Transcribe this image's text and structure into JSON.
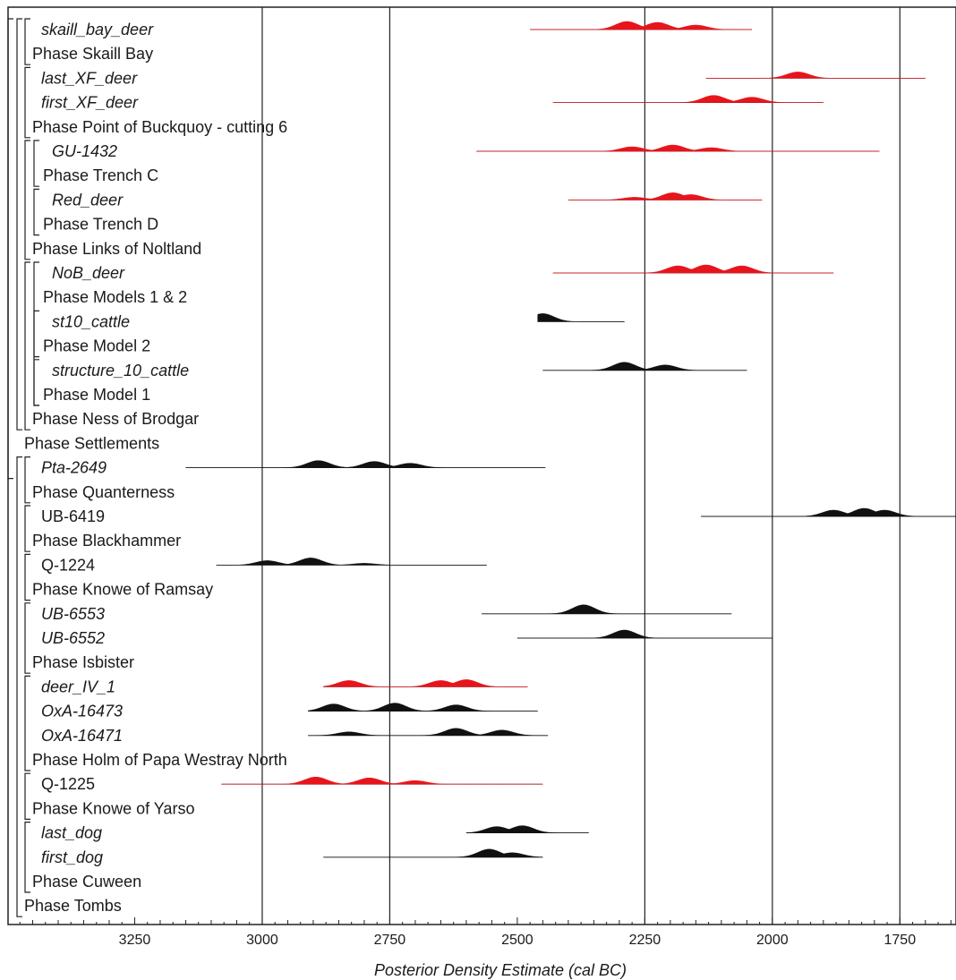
{
  "chart_data": {
    "type": "oxcal-multiplot",
    "xlabel": "Posterior Density Estimate (cal BC)",
    "xlim": [
      3500,
      1640
    ],
    "ticks": [
      3250,
      3000,
      2750,
      2500,
      2250,
      2000,
      1750
    ],
    "tick_labels": [
      "3250",
      "3000",
      "2750",
      "2500",
      "2250",
      "2000",
      "1750"
    ],
    "gridlines": [
      3000,
      2750,
      2250,
      2000,
      1750
    ],
    "colors": {
      "red": "#e8141c",
      "black": "#111111",
      "line": "#222222"
    },
    "rows": [
      {
        "label": "skaill_bay_deer",
        "italic": true,
        "color": "red",
        "range": [
          2475,
          2040
        ],
        "peaks": [
          [
            2285,
            9
          ],
          [
            2225,
            8
          ],
          [
            2150,
            5
          ]
        ]
      },
      {
        "label": "Phase Skaill Bay",
        "italic": false
      },
      {
        "label": "last_XF_deer",
        "italic": true,
        "color": "red",
        "range": [
          2130,
          1700
        ],
        "peaks": [
          [
            1950,
            7
          ]
        ]
      },
      {
        "label": "first_XF_deer",
        "italic": true,
        "color": "red",
        "range": [
          2430,
          1900
        ],
        "peaks": [
          [
            2115,
            8
          ],
          [
            2040,
            6
          ]
        ]
      },
      {
        "label": "Phase Point of Buckquoy - cutting 6",
        "italic": false
      },
      {
        "label": "GU-1432",
        "italic": true,
        "color": "red",
        "range": [
          2580,
          1790
        ],
        "peaks": [
          [
            2275,
            5
          ],
          [
            2195,
            7
          ],
          [
            2120,
            4
          ]
        ]
      },
      {
        "label": "Phase Trench C",
        "italic": false
      },
      {
        "label": "Red_deer",
        "italic": true,
        "color": "red",
        "range": [
          2400,
          2020
        ],
        "peaks": [
          [
            2270,
            3
          ],
          [
            2195,
            8
          ],
          [
            2160,
            6
          ]
        ]
      },
      {
        "label": "Phase Trench D",
        "italic": false
      },
      {
        "label": "Phase Links of Noltland",
        "italic": false
      },
      {
        "label": "NoB_deer",
        "italic": true,
        "color": "red",
        "range": [
          2430,
          1880
        ],
        "peaks": [
          [
            2185,
            8
          ],
          [
            2130,
            9
          ],
          [
            2060,
            8
          ]
        ]
      },
      {
        "label": "Phase Models 1 & 2",
        "italic": false
      },
      {
        "label": "st10_cattle",
        "italic": true,
        "color": "black",
        "range": [
          2460,
          2290
        ],
        "peaks": [
          [
            2450,
            9
          ]
        ]
      },
      {
        "label": "Phase Model 2",
        "italic": false
      },
      {
        "label": "structure_10_cattle",
        "italic": true,
        "color": "black",
        "range": [
          2450,
          2050
        ],
        "peaks": [
          [
            2290,
            9
          ],
          [
            2210,
            6
          ]
        ]
      },
      {
        "label": "Phase Model 1",
        "italic": false
      },
      {
        "label": "Phase Ness of Brodgar",
        "italic": false
      },
      {
        "label": "Phase Settlements",
        "italic": false
      },
      {
        "label": "Pta-2649",
        "italic": true,
        "color": "black",
        "range": [
          3150,
          2445
        ],
        "peaks": [
          [
            2890,
            8
          ],
          [
            2780,
            7
          ],
          [
            2710,
            5
          ]
        ]
      },
      {
        "label": "Phase Quanterness",
        "italic": false
      },
      {
        "label": "UB-6419",
        "italic": false,
        "color": "black",
        "range": [
          2140,
          1640
        ],
        "peaks": [
          [
            1880,
            7
          ],
          [
            1820,
            9
          ],
          [
            1780,
            7
          ]
        ]
      },
      {
        "label": "Phase Blackhammer",
        "italic": false
      },
      {
        "label": "Q-1224",
        "italic": false,
        "color": "black",
        "range": [
          3090,
          2560
        ],
        "peaks": [
          [
            2990,
            5
          ],
          [
            2905,
            8
          ],
          [
            2800,
            2
          ]
        ]
      },
      {
        "label": "Phase Knowe of Ramsay",
        "italic": false
      },
      {
        "label": "UB-6553",
        "italic": true,
        "color": "black",
        "range": [
          2570,
          2080
        ],
        "peaks": [
          [
            2370,
            10
          ]
        ]
      },
      {
        "label": "UB-6552",
        "italic": true,
        "color": "black",
        "range": [
          2500,
          2000
        ],
        "peaks": [
          [
            2290,
            9
          ]
        ]
      },
      {
        "label": "Phase Isbister",
        "italic": false
      },
      {
        "label": "deer_IV_1",
        "italic": true,
        "color": "red",
        "range": [
          2880,
          2480
        ],
        "peaks": [
          [
            2830,
            7
          ],
          [
            2650,
            7
          ],
          [
            2600,
            8
          ]
        ]
      },
      {
        "label": "OxA-16473",
        "italic": true,
        "color": "black",
        "range": [
          2910,
          2460
        ],
        "peaks": [
          [
            2860,
            8
          ],
          [
            2740,
            9
          ],
          [
            2620,
            7
          ]
        ]
      },
      {
        "label": "OxA-16471",
        "italic": true,
        "color": "black",
        "range": [
          2910,
          2440
        ],
        "peaks": [
          [
            2830,
            4
          ],
          [
            2620,
            8
          ],
          [
            2530,
            6
          ]
        ]
      },
      {
        "label": "Phase Holm of Papa Westray North",
        "italic": false
      },
      {
        "label": "Q-1225",
        "italic": false,
        "color": "red",
        "range": [
          3080,
          2450
        ],
        "peaks": [
          [
            2895,
            8
          ],
          [
            2790,
            7
          ],
          [
            2700,
            4
          ]
        ]
      },
      {
        "label": "Phase Knowe of Yarso",
        "italic": false
      },
      {
        "label": "last_dog",
        "italic": true,
        "color": "black",
        "range": [
          2600,
          2360
        ],
        "peaks": [
          [
            2540,
            7
          ],
          [
            2490,
            8
          ]
        ]
      },
      {
        "label": "first_dog",
        "italic": true,
        "color": "black",
        "range": [
          2880,
          2450
        ],
        "peaks": [
          [
            2555,
            9
          ],
          [
            2510,
            5
          ]
        ]
      },
      {
        "label": "Phase Cuween",
        "italic": false
      },
      {
        "label": "Phase Tombs",
        "italic": false
      }
    ]
  }
}
